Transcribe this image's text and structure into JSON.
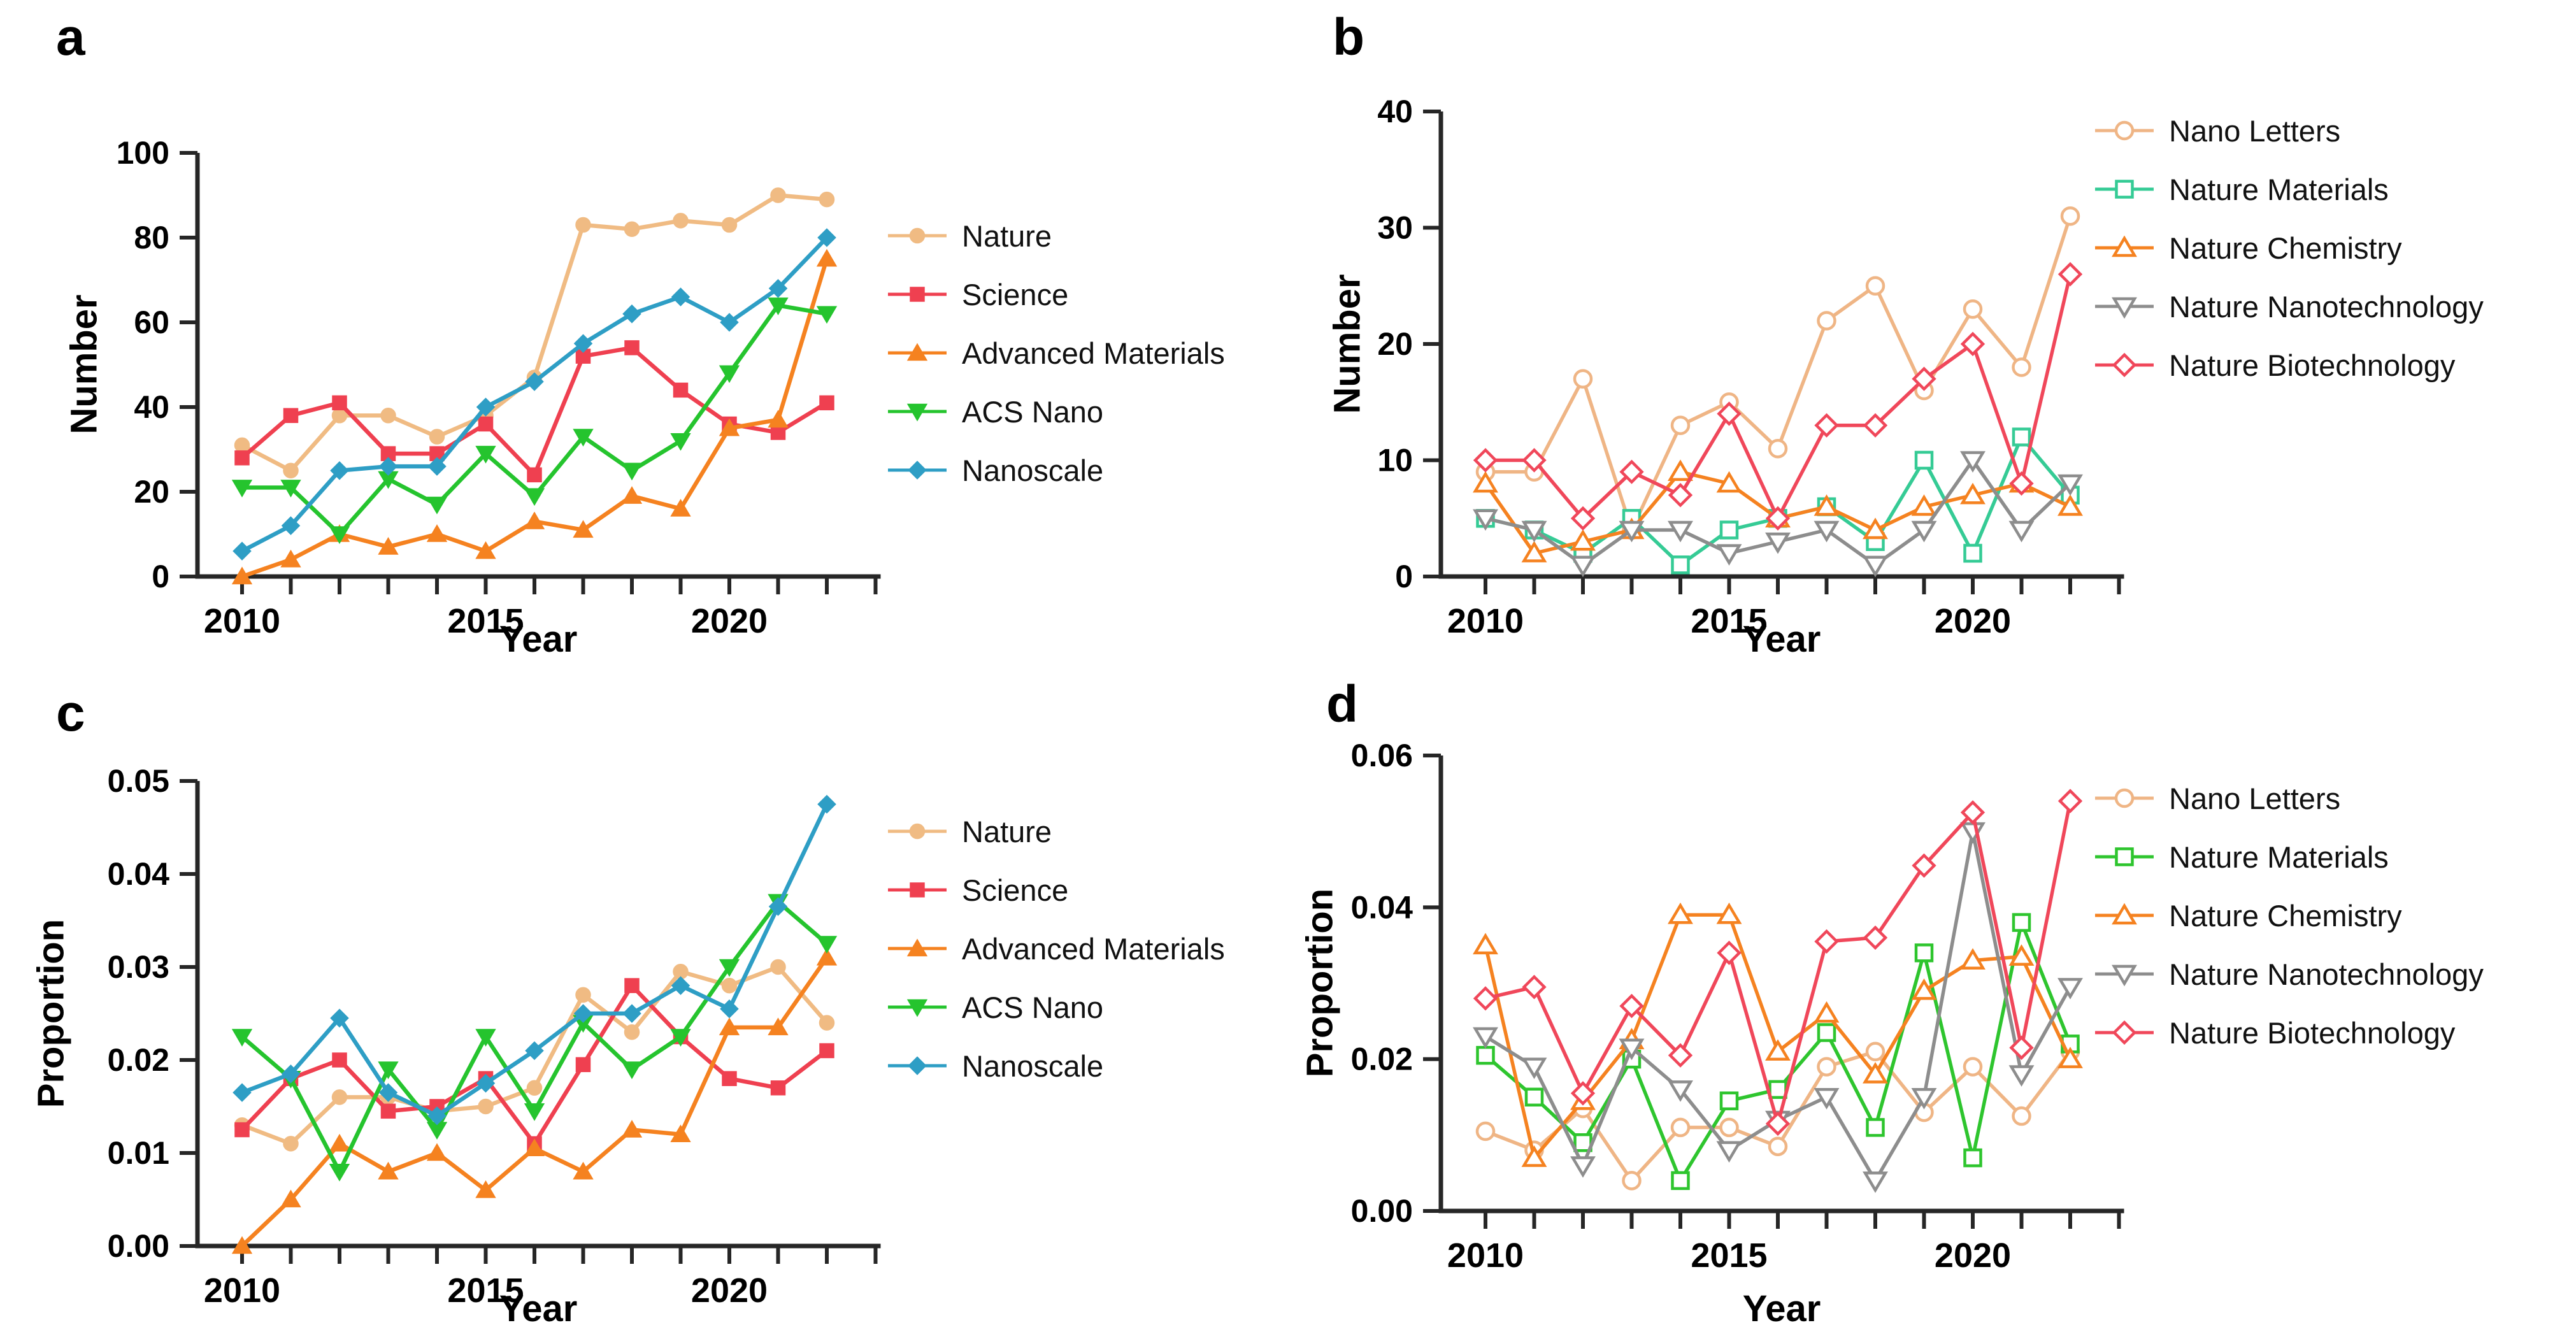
{
  "figure": {
    "background": "#ffffff",
    "axis_color": "#262626",
    "panel_letters": [
      "a",
      "b",
      "c",
      "d"
    ]
  },
  "chart_data": [
    {
      "type": "line",
      "letter": "a",
      "xlabel": "Year",
      "ylabel": "Number",
      "ylim": [
        0,
        100
      ],
      "yticks": [
        0,
        20,
        40,
        60,
        80,
        100
      ],
      "ytick_labels": [
        "0",
        "20",
        "40",
        "60",
        "80",
        "100"
      ],
      "x": [
        2010,
        2011,
        2012,
        2013,
        2014,
        2015,
        2016,
        2017,
        2018,
        2019,
        2020,
        2021,
        2022
      ],
      "xtick_years": [
        2010,
        2011,
        2012,
        2013,
        2014,
        2015,
        2016,
        2017,
        2018,
        2019,
        2020,
        2021,
        2022,
        2023
      ],
      "xtick_labeled": {
        "2010": "2010",
        "2015": "2015",
        "2020": "2020"
      },
      "legend_position": "right",
      "grid": false,
      "marker_style": "filled",
      "series": [
        {
          "name": "Nature",
          "color": "#F0BB83",
          "marker": "circle",
          "values": [
            31,
            25,
            38,
            38,
            33,
            38,
            47,
            83,
            82,
            84,
            83,
            90,
            89
          ]
        },
        {
          "name": "Science",
          "color": "#EF4050",
          "marker": "square",
          "values": [
            28,
            38,
            41,
            29,
            29,
            36,
            24,
            52,
            54,
            44,
            36,
            34,
            41
          ]
        },
        {
          "name": "Advanced Materials",
          "color": "#F58220",
          "marker": "triangle-up",
          "values": [
            0,
            4,
            10,
            7,
            10,
            6,
            13,
            11,
            19,
            16,
            35,
            37,
            75
          ]
        },
        {
          "name": "ACS Nano",
          "color": "#25C42E",
          "marker": "triangle-down",
          "values": [
            21,
            21,
            10,
            23,
            17,
            29,
            19,
            33,
            25,
            32,
            48,
            64,
            62
          ]
        },
        {
          "name": "Nanoscale",
          "color": "#2E9EC5",
          "marker": "diamond",
          "values": [
            6,
            12,
            25,
            26,
            26,
            40,
            46,
            55,
            62,
            66,
            60,
            68,
            80
          ]
        }
      ]
    },
    {
      "type": "line",
      "letter": "b",
      "xlabel": "Year",
      "ylabel": "Number",
      "ylim": [
        0,
        40
      ],
      "yticks": [
        0,
        10,
        20,
        30,
        40
      ],
      "ytick_labels": [
        "0",
        "10",
        "20",
        "30",
        "40"
      ],
      "x": [
        2010,
        2011,
        2012,
        2013,
        2014,
        2015,
        2016,
        2017,
        2018,
        2019,
        2020,
        2021,
        2022
      ],
      "xtick_years": [
        2010,
        2011,
        2012,
        2013,
        2014,
        2015,
        2016,
        2017,
        2018,
        2019,
        2020,
        2021,
        2022,
        2023
      ],
      "xtick_labeled": {
        "2010": "2010",
        "2015": "2015",
        "2020": "2020"
      },
      "legend_position": "right",
      "grid": false,
      "marker_style": "open",
      "series": [
        {
          "name": "Nano Letters",
          "color": "#EFB585",
          "marker": "circle",
          "values": [
            9,
            9,
            17,
            4,
            13,
            15,
            11,
            22,
            25,
            16,
            23,
            18,
            31
          ]
        },
        {
          "name": "Nature Materials",
          "color": "#35CB95",
          "marker": "square",
          "values": [
            5,
            4,
            2,
            5,
            1,
            4,
            5,
            6,
            3,
            10,
            2,
            12,
            7
          ]
        },
        {
          "name": "Nature Chemistry",
          "color": "#F58220",
          "marker": "triangle-up",
          "values": [
            8,
            2,
            3,
            4,
            9,
            8,
            5,
            6,
            4,
            6,
            7,
            8,
            6
          ]
        },
        {
          "name": "Nature Nanotechnology",
          "color": "#8D8D8D",
          "marker": "triangle-down",
          "values": [
            5,
            4,
            1,
            4,
            4,
            2,
            3,
            4,
            1,
            4,
            10,
            4,
            8
          ]
        },
        {
          "name": "Nature Biotechnology",
          "color": "#F0475A",
          "marker": "diamond",
          "values": [
            10,
            10,
            5,
            9,
            7,
            14,
            5,
            13,
            13,
            17,
            20,
            8,
            26
          ]
        }
      ]
    },
    {
      "type": "line",
      "letter": "c",
      "xlabel": "Year",
      "ylabel": "Proportion",
      "ylim": [
        0,
        0.05
      ],
      "yticks": [
        0,
        0.01,
        0.02,
        0.03,
        0.04,
        0.05
      ],
      "ytick_labels": [
        "0.00",
        "0.01",
        "0.02",
        "0.03",
        "0.04",
        "0.05"
      ],
      "x": [
        2010,
        2011,
        2012,
        2013,
        2014,
        2015,
        2016,
        2017,
        2018,
        2019,
        2020,
        2021,
        2022
      ],
      "xtick_years": [
        2010,
        2011,
        2012,
        2013,
        2014,
        2015,
        2016,
        2017,
        2018,
        2019,
        2020,
        2021,
        2022,
        2023
      ],
      "xtick_labeled": {
        "2010": "2010",
        "2015": "2015",
        "2020": "2020"
      },
      "legend_position": "right",
      "grid": false,
      "marker_style": "filled",
      "series": [
        {
          "name": "Nature",
          "color": "#F0BB83",
          "marker": "circle",
          "values": [
            0.013,
            0.011,
            0.016,
            0.016,
            0.0145,
            0.015,
            0.017,
            0.027,
            0.023,
            0.0295,
            0.028,
            0.03,
            0.024
          ]
        },
        {
          "name": "Science",
          "color": "#EF4050",
          "marker": "square",
          "values": [
            0.0125,
            0.018,
            0.02,
            0.0145,
            0.015,
            0.018,
            0.011,
            0.0195,
            0.028,
            0.0225,
            0.018,
            0.017,
            0.021
          ]
        },
        {
          "name": "Advanced Materials",
          "color": "#F58220",
          "marker": "triangle-up",
          "values": [
            0.0,
            0.005,
            0.011,
            0.008,
            0.01,
            0.006,
            0.0105,
            0.008,
            0.0125,
            0.012,
            0.0235,
            0.0235,
            0.031
          ]
        },
        {
          "name": "ACS Nano",
          "color": "#25C42E",
          "marker": "triangle-down",
          "values": [
            0.0225,
            0.018,
            0.008,
            0.019,
            0.0125,
            0.0225,
            0.0145,
            0.024,
            0.019,
            0.0225,
            0.03,
            0.037,
            0.0325
          ]
        },
        {
          "name": "Nanoscale",
          "color": "#2E9EC5",
          "marker": "diamond",
          "values": [
            0.0165,
            0.0185,
            0.0245,
            0.0165,
            0.014,
            0.0175,
            0.021,
            0.025,
            0.025,
            0.028,
            0.0255,
            0.0365,
            0.0475
          ]
        }
      ]
    },
    {
      "type": "line",
      "letter": "d",
      "xlabel": "Year",
      "ylabel": "Proportion",
      "ylim": [
        0,
        0.06
      ],
      "yticks": [
        0,
        0.02,
        0.04,
        0.06
      ],
      "ytick_labels": [
        "0.00",
        "0.02",
        "0.04",
        "0.06"
      ],
      "x": [
        2010,
        2011,
        2012,
        2013,
        2014,
        2015,
        2016,
        2017,
        2018,
        2019,
        2020,
        2021,
        2022
      ],
      "xtick_years": [
        2010,
        2011,
        2012,
        2013,
        2014,
        2015,
        2016,
        2017,
        2018,
        2019,
        2020,
        2021,
        2022,
        2023
      ],
      "xtick_labeled": {
        "2010": "2010",
        "2015": "2015",
        "2020": "2020"
      },
      "legend_position": "right",
      "grid": false,
      "marker_style": "open",
      "series": [
        {
          "name": "Nano Letters",
          "color": "#EFB585",
          "marker": "circle",
          "values": [
            0.0105,
            0.008,
            0.0135,
            0.004,
            0.011,
            0.011,
            0.0085,
            0.019,
            0.021,
            0.013,
            0.019,
            0.0125,
            0.021
          ]
        },
        {
          "name": "Nature Materials",
          "color": "#2EC52E",
          "marker": "square",
          "values": [
            0.0205,
            0.015,
            0.009,
            0.02,
            0.004,
            0.0145,
            0.016,
            0.0235,
            0.011,
            0.034,
            0.007,
            0.038,
            0.022
          ]
        },
        {
          "name": "Nature Chemistry",
          "color": "#F58220",
          "marker": "triangle-up",
          "values": [
            0.035,
            0.007,
            0.0145,
            0.0225,
            0.039,
            0.039,
            0.021,
            0.026,
            0.018,
            0.029,
            0.033,
            0.0335,
            0.02
          ]
        },
        {
          "name": "Nature Nanotechnology",
          "color": "#8D8D8D",
          "marker": "triangle-down",
          "values": [
            0.023,
            0.019,
            0.006,
            0.0215,
            0.016,
            0.008,
            0.012,
            0.015,
            0.004,
            0.015,
            0.05,
            0.018,
            0.0295
          ]
        },
        {
          "name": "Nature Biotechnology",
          "color": "#F0475A",
          "marker": "diamond",
          "values": [
            0.028,
            0.0295,
            0.0155,
            0.027,
            0.0205,
            0.034,
            0.0115,
            0.0355,
            0.036,
            0.0455,
            0.0525,
            0.0215,
            0.054
          ]
        }
      ]
    }
  ]
}
